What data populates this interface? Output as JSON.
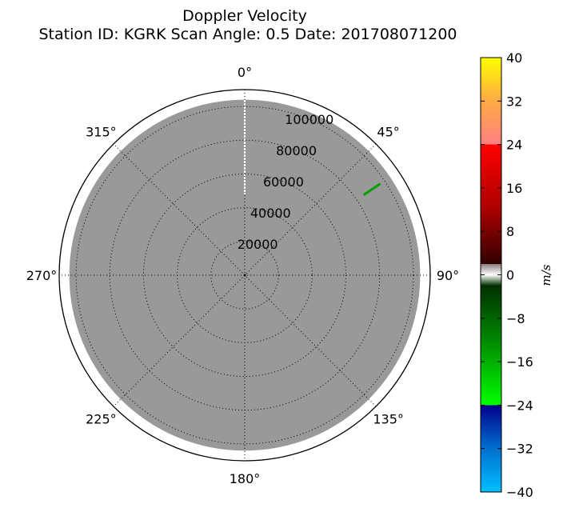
{
  "chart_data": {
    "type": "heatmap",
    "projection": "polar",
    "title": "Doppler Velocity",
    "subtitle": "Station ID: KGRK  Scan Angle: 0.5  Date: 201708071200",
    "theta_direction": "clockwise",
    "theta_zero": "north",
    "theta_ticks": [
      "0°",
      "45°",
      "90°",
      "135°",
      "180°",
      "225°",
      "270°",
      "315°"
    ],
    "r_ticks": [
      "20000",
      "40000",
      "60000",
      "80000",
      "100000"
    ],
    "r_max": 110000,
    "grid": true,
    "fill_color": "#999999",
    "fill_r_range": [
      0,
      104000
    ],
    "features": [
      {
        "type": "no-data gap",
        "azimuth_deg": 0,
        "r_start": 48000,
        "r_end": 104000,
        "color": "#ffffff"
      },
      {
        "type": "velocity streak",
        "azimuth_deg": 56,
        "r_start": 85000,
        "r_end": 97000,
        "value_ms": -14,
        "color": "#00a000"
      }
    ],
    "colorbar": {
      "label": "m/s",
      "min": -40,
      "max": 40,
      "ticks": [
        "40",
        "32",
        "24",
        "16",
        "8",
        "0",
        "−8",
        "−16",
        "−24",
        "−32",
        "−40"
      ],
      "stops": [
        {
          "value": -40,
          "color": "#00bfff"
        },
        {
          "value": -32,
          "color": "#0070d0"
        },
        {
          "value": -24,
          "color": "#00008b"
        },
        {
          "value": -24,
          "color": "#00ff00"
        },
        {
          "value": -12,
          "color": "#008800"
        },
        {
          "value": -2,
          "color": "#003000"
        },
        {
          "value": 0,
          "color": "#ffffff"
        },
        {
          "value": 2,
          "color": "#8a7a7a"
        },
        {
          "value": 2,
          "color": "#300000"
        },
        {
          "value": 12,
          "color": "#aa0000"
        },
        {
          "value": 24,
          "color": "#ff0000"
        },
        {
          "value": 24,
          "color": "#ff8080"
        },
        {
          "value": 32,
          "color": "#ffaa44"
        },
        {
          "value": 40,
          "color": "#ffff00"
        }
      ]
    }
  }
}
